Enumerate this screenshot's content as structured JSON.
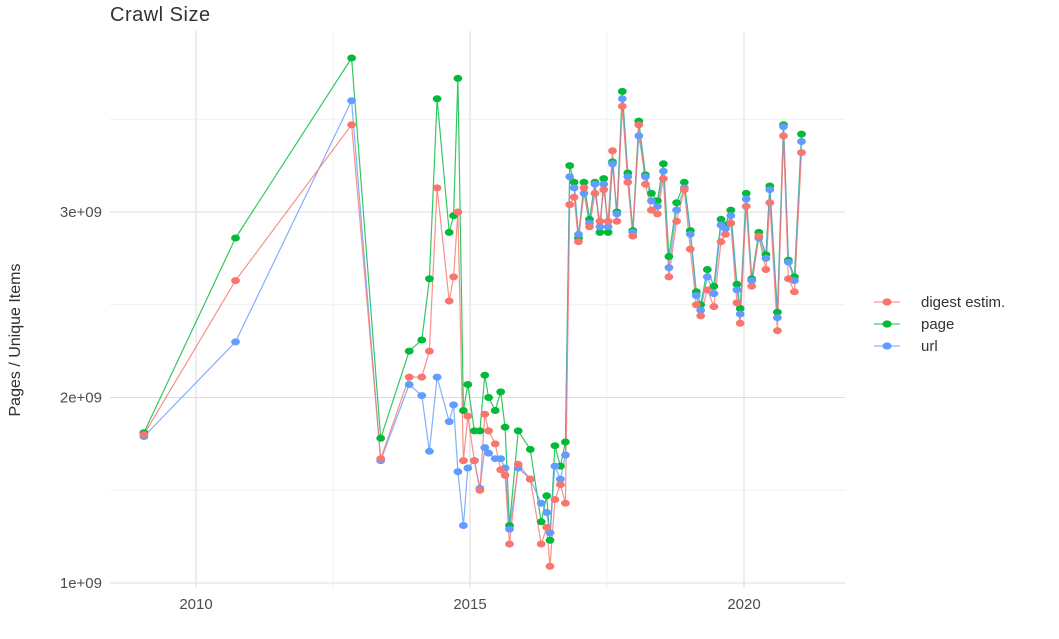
{
  "title": "Crawl Size",
  "y_axis": {
    "label": "Pages / Unique Items",
    "tick_labels": [
      "1e+09",
      "2e+09",
      "3e+09"
    ],
    "tick_values_e9": [
      1,
      2,
      3
    ],
    "minor_gridlines_e9": [
      1.5,
      2.5,
      3.5
    ]
  },
  "x_axis": {
    "tick_labels": [
      "2010",
      "2015",
      "2020"
    ],
    "tick_values": [
      2010,
      2015,
      2020
    ],
    "minor_gridlines": [
      2012.5,
      2017.5
    ]
  },
  "legend": {
    "position": "right",
    "items": [
      {
        "label": "digest estim.",
        "color": "#F8766D"
      },
      {
        "label": "page",
        "color": "#00BA38"
      },
      {
        "label": "url",
        "color": "#619CFF"
      }
    ]
  },
  "colors": {
    "background": "#FFFFFF",
    "grid_major": "#DEDEDE",
    "grid_minor": "#ECECEC",
    "digest": "#F8766D",
    "page": "#00BA38",
    "url": "#619CFF",
    "tick_text": "#4D4D4D",
    "text": "#333333"
  },
  "chart_data": {
    "type": "line",
    "title": "Crawl Size",
    "xlabel": "",
    "ylabel": "Pages / Unique Items",
    "x_unit": "year (decimal)",
    "y_unit": "count x 1e9 (billions)",
    "xlim": [
      2008.43,
      2021.84
    ],
    "ylim_e9": [
      0.97,
      3.98
    ],
    "grid": true,
    "legend_position": "right",
    "marker": "point",
    "x": [
      2009.05,
      2010.72,
      2012.84,
      2013.37,
      2013.89,
      2014.12,
      2014.26,
      2014.4,
      2014.62,
      2014.7,
      2014.78,
      2014.88,
      2014.96,
      2015.08,
      2015.18,
      2015.27,
      2015.34,
      2015.46,
      2015.56,
      2015.64,
      2015.72,
      2015.88,
      2016.1,
      2016.3,
      2016.4,
      2016.46,
      2016.55,
      2016.65,
      2016.74,
      2016.82,
      2016.9,
      2016.98,
      2017.08,
      2017.18,
      2017.28,
      2017.37,
      2017.44,
      2017.52,
      2017.6,
      2017.68,
      2017.78,
      2017.88,
      2017.97,
      2018.08,
      2018.2,
      2018.31,
      2018.42,
      2018.53,
      2018.63,
      2018.77,
      2018.91,
      2019.02,
      2019.13,
      2019.21,
      2019.33,
      2019.45,
      2019.58,
      2019.66,
      2019.76,
      2019.87,
      2019.93,
      2020.04,
      2020.14,
      2020.27,
      2020.4,
      2020.47,
      2020.61,
      2020.72,
      2020.81,
      2020.92,
      2021.05
    ],
    "series": [
      {
        "name": "page",
        "color": "#00BA38",
        "values_e9": [
          1.81,
          2.86,
          3.83,
          1.78,
          2.25,
          2.31,
          2.64,
          3.61,
          2.89,
          2.98,
          3.72,
          1.93,
          2.07,
          1.82,
          1.82,
          2.12,
          2.0,
          1.93,
          2.03,
          1.84,
          1.31,
          1.82,
          1.72,
          1.33,
          1.47,
          1.23,
          1.74,
          1.63,
          1.76,
          3.25,
          3.16,
          2.86,
          3.16,
          2.96,
          3.16,
          2.89,
          3.18,
          2.89,
          3.27,
          3.0,
          3.65,
          3.21,
          2.9,
          3.49,
          3.2,
          3.1,
          3.06,
          3.26,
          2.76,
          3.05,
          3.16,
          2.9,
          2.57,
          2.5,
          2.69,
          2.6,
          2.96,
          2.93,
          3.01,
          2.61,
          2.48,
          3.1,
          2.64,
          2.89,
          2.77,
          3.14,
          2.46,
          3.47,
          2.74,
          2.65,
          3.42
        ]
      },
      {
        "name": "url",
        "color": "#619CFF",
        "values_e9": [
          1.79,
          2.3,
          3.6,
          1.66,
          2.07,
          2.01,
          1.71,
          2.11,
          1.87,
          1.96,
          1.6,
          1.31,
          1.62,
          1.66,
          1.51,
          1.73,
          1.7,
          1.67,
          1.67,
          1.62,
          1.29,
          1.62,
          1.56,
          1.43,
          1.38,
          1.27,
          1.63,
          1.56,
          1.69,
          3.19,
          3.13,
          2.88,
          3.1,
          2.94,
          3.15,
          2.92,
          3.15,
          2.92,
          3.26,
          2.99,
          3.61,
          3.19,
          2.89,
          3.41,
          3.19,
          3.06,
          3.03,
          3.22,
          2.7,
          3.01,
          3.13,
          2.88,
          2.55,
          2.47,
          2.65,
          2.56,
          2.93,
          2.91,
          2.98,
          2.58,
          2.45,
          3.07,
          2.63,
          2.86,
          2.75,
          3.12,
          2.43,
          3.46,
          2.73,
          2.63,
          3.38
        ]
      },
      {
        "name": "digest estim.",
        "color": "#F8766D",
        "values_e9": [
          1.8,
          2.63,
          3.47,
          1.67,
          2.11,
          2.11,
          2.25,
          3.13,
          2.52,
          2.65,
          3.0,
          1.66,
          1.9,
          1.66,
          1.5,
          1.91,
          1.82,
          1.75,
          1.61,
          1.58,
          1.21,
          1.64,
          1.56,
          1.21,
          1.3,
          1.09,
          1.45,
          1.53,
          1.43,
          3.04,
          3.08,
          2.84,
          3.13,
          2.92,
          3.1,
          2.95,
          3.12,
          2.95,
          3.33,
          2.95,
          3.57,
          3.16,
          2.87,
          3.47,
          3.15,
          3.01,
          2.99,
          3.18,
          2.65,
          2.95,
          3.12,
          2.8,
          2.5,
          2.44,
          2.58,
          2.49,
          2.84,
          2.88,
          2.94,
          2.51,
          2.4,
          3.03,
          2.6,
          2.87,
          2.69,
          3.05,
          2.36,
          3.41,
          2.64,
          2.57,
          3.32
        ]
      }
    ]
  }
}
